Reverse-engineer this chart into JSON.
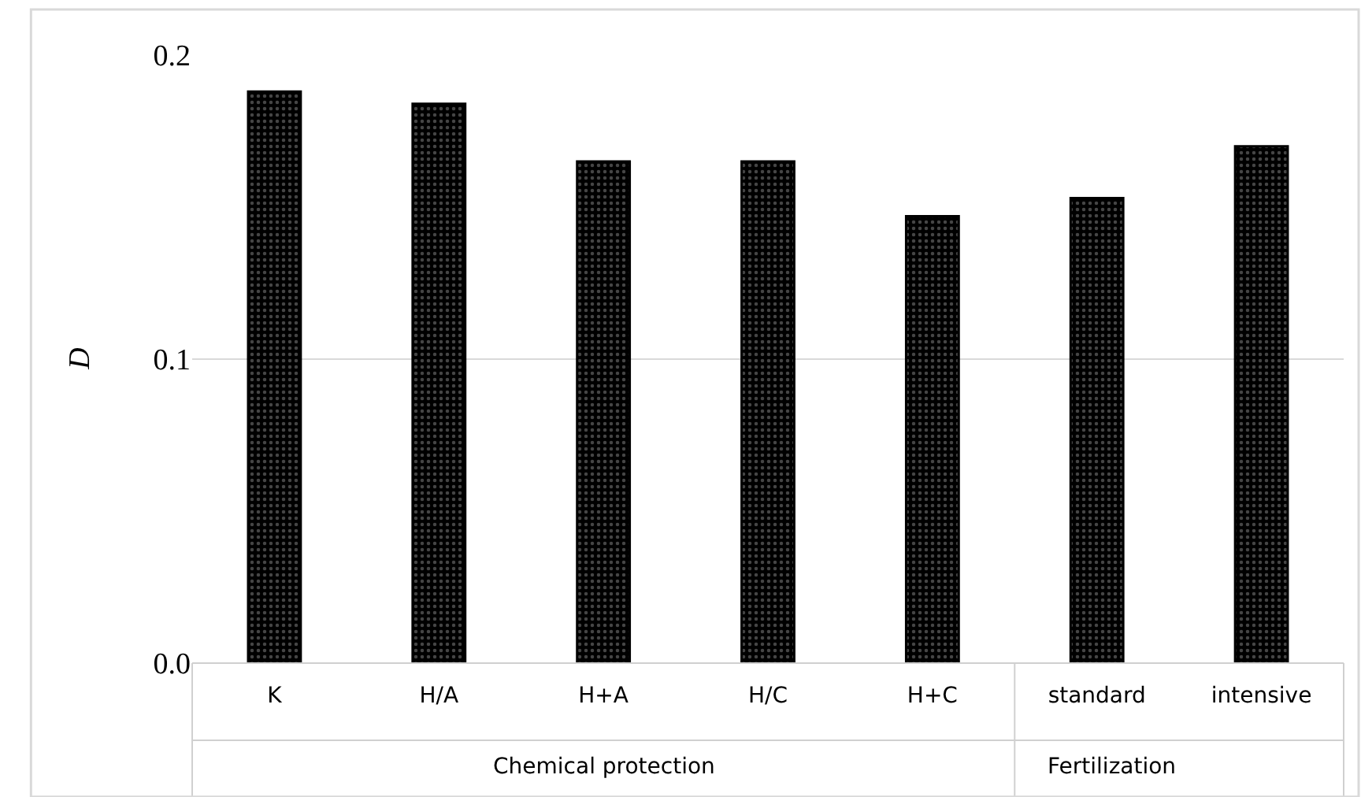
{
  "chart_data": {
    "type": "bar",
    "ylabel": "D",
    "categories": [
      "K",
      "H/A",
      "H+A",
      "H/C",
      "H+C",
      "standard",
      "intensive"
    ],
    "values": [
      0.188,
      0.184,
      0.165,
      0.165,
      0.147,
      0.153,
      0.17
    ],
    "color": "#000000",
    "ylim": [
      0,
      0.2
    ],
    "yticks": [
      {
        "value": 0,
        "label": "0.0"
      },
      0.1,
      0.2
    ],
    "grid": "y",
    "annotations": [
      "Chemical protection",
      "Fertilization"
    ]
  }
}
